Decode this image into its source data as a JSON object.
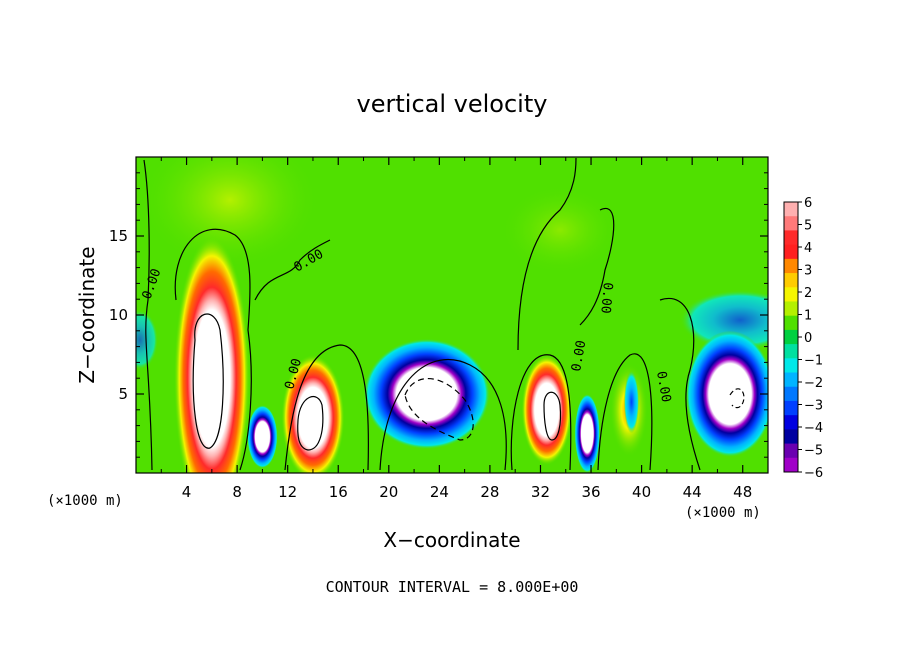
{
  "chart_data": {
    "type": "heatmap",
    "title": "vertical velocity",
    "xlabel": "X−coordinate",
    "ylabel": "Z−coordinate",
    "x_unit": "(×1000 m)",
    "z_unit": "(×1000 m)",
    "footer": "CONTOUR INTERVAL = 8.000E+00",
    "xlim": [
      0,
      50
    ],
    "ylim": [
      0,
      20
    ],
    "x_ticks": [
      4,
      8,
      12,
      16,
      20,
      24,
      28,
      32,
      36,
      40,
      44,
      48
    ],
    "y_ticks": [
      5,
      10,
      15
    ],
    "colorbar": {
      "range": [
        -6,
        6
      ],
      "ticks": [
        "6",
        "5",
        "4",
        "3",
        "2",
        "1",
        "0",
        "−1",
        "−2",
        "−3",
        "−4",
        "−5",
        "−6"
      ],
      "colors": [
        "#ffb0b0",
        "#ff7a7a",
        "#ff2a2a",
        "#ff2020",
        "#ff8800",
        "#ffcc00",
        "#f5f500",
        "#b4f000",
        "#50e000",
        "#00d040",
        "#00e0a0",
        "#00e8e8",
        "#00b4ff",
        "#0078ff",
        "#0040ff",
        "#0000e0",
        "#0000a0",
        "#6a00b0",
        "#a000c8"
      ]
    },
    "contour_label": "0.00",
    "features": [
      {
        "type": "updraft",
        "x": 6,
        "z": 6,
        "rx": 3,
        "rz": 9,
        "max": 6
      },
      {
        "type": "downdraft",
        "x": 10,
        "z": 2.3,
        "rx": 1.2,
        "rz": 2,
        "min": -5
      },
      {
        "type": "updraft",
        "x": 14,
        "z": 3.5,
        "rx": 2.5,
        "rz": 4,
        "max": 6
      },
      {
        "type": "downdraft",
        "x": 23,
        "z": 5,
        "rx": 5,
        "rz": 3.5,
        "min": -6
      },
      {
        "type": "updraft",
        "x": 32.5,
        "z": 4,
        "rx": 2,
        "rz": 3.5,
        "max": 6
      },
      {
        "type": "downdraft",
        "x": 35.7,
        "z": 2.5,
        "rx": 1,
        "rz": 2.5,
        "min": -5
      },
      {
        "type": "updraft",
        "x": 39,
        "z": 4,
        "rx": 1.5,
        "rz": 3,
        "max": 2
      },
      {
        "type": "downdraft",
        "x": 39.2,
        "z": 4.5,
        "rx": 0.6,
        "rz": 2,
        "min": -3
      },
      {
        "type": "downdraft",
        "x": 47,
        "z": 5,
        "rx": 3.5,
        "rz": 4,
        "min": -6
      }
    ]
  }
}
